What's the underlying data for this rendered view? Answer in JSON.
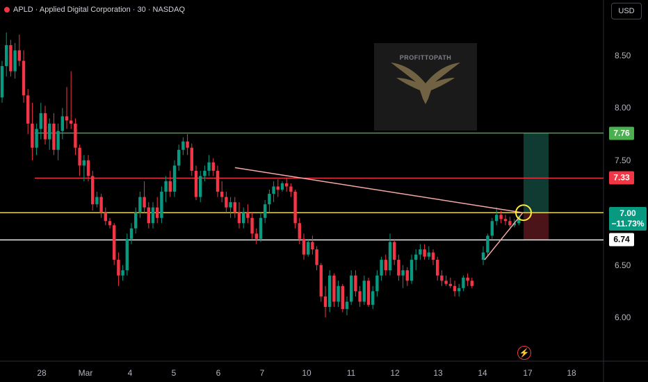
{
  "header": {
    "symbol_line": "APLD · Applied Digital Corporation · 30 · NASDAQ",
    "currency_button": "USD",
    "status_color": "#f23645"
  },
  "watermark": {
    "text": "PROFITTOPATH",
    "icon": "eagle-icon"
  },
  "flash_icon": "lightning-icon",
  "colors": {
    "up": "#089981",
    "down": "#f23645",
    "green_line": "#4caf50",
    "red_line": "#f23645",
    "yellow_line": "#ffeb3b",
    "white_line": "#ffffff",
    "trend_line": "#f7a9a8"
  },
  "chart_data": {
    "type": "candlestick",
    "symbol": "APLD",
    "interval": "30",
    "exchange": "NASDAQ",
    "ylim": [
      5.55,
      9.0
    ],
    "y_ticks": [
      "8.50",
      "8.00",
      "7.50",
      "7.00",
      "6.50",
      "6.00"
    ],
    "x_ticks": [
      "28",
      "Mar",
      "4",
      "5",
      "6",
      "7",
      "10",
      "11",
      "12",
      "13",
      "14",
      "17",
      "18"
    ],
    "horizontal_lines": [
      {
        "value": 7.76,
        "label": "7.76",
        "color": "#4caf50"
      },
      {
        "value": 7.33,
        "label": "7.33",
        "color": "#f23645"
      },
      {
        "value": 7.0,
        "label": "7.00",
        "sublabel": "−11.73%",
        "color": "#ffeb3b"
      },
      {
        "value": 6.74,
        "label": "6.74",
        "color": "#ffffff"
      }
    ],
    "trend_lines": [
      {
        "from": {
          "bar": 50,
          "value": 7.43
        },
        "to": {
          "bar": 114,
          "value": 7.0
        }
      },
      {
        "from": {
          "bar": 105,
          "value": 6.55
        },
        "to": {
          "bar": 114,
          "value": 7.0
        }
      }
    ],
    "position": {
      "entry": 7.0,
      "target": 7.76,
      "stop": 6.74,
      "start_bar": 112,
      "end_bar": 118
    },
    "candles": [
      [
        8.1,
        8.45,
        8.05,
        8.4
      ],
      [
        8.4,
        8.72,
        8.3,
        8.6
      ],
      [
        8.6,
        8.65,
        8.3,
        8.35
      ],
      [
        8.35,
        8.62,
        8.28,
        8.55
      ],
      [
        8.55,
        8.7,
        8.4,
        8.45
      ],
      [
        8.45,
        8.55,
        8.05,
        8.12
      ],
      [
        8.12,
        8.18,
        7.75,
        7.85
      ],
      [
        7.85,
        8.05,
        7.5,
        7.62
      ],
      [
        7.62,
        7.85,
        7.55,
        7.8
      ],
      [
        7.8,
        8.05,
        7.7,
        7.95
      ],
      [
        7.95,
        8.02,
        7.65,
        7.7
      ],
      [
        7.7,
        7.9,
        7.6,
        7.85
      ],
      [
        7.85,
        7.95,
        7.55,
        7.6
      ],
      [
        7.6,
        7.85,
        7.5,
        7.78
      ],
      [
        7.78,
        8.0,
        7.7,
        7.92
      ],
      [
        7.92,
        8.2,
        7.8,
        7.88
      ],
      [
        7.88,
        8.35,
        7.8,
        7.85
      ],
      [
        7.85,
        7.9,
        7.55,
        7.62
      ],
      [
        7.62,
        7.65,
        7.35,
        7.45
      ],
      [
        7.45,
        7.55,
        7.3,
        7.5
      ],
      [
        7.5,
        7.55,
        7.3,
        7.35
      ],
      [
        7.35,
        7.4,
        7.02,
        7.08
      ],
      [
        7.08,
        7.2,
        7.05,
        7.15
      ],
      [
        7.15,
        7.18,
        6.95,
        7.0
      ],
      [
        7.0,
        7.05,
        6.88,
        6.92
      ],
      [
        6.92,
        6.95,
        6.85,
        6.88
      ],
      [
        6.88,
        6.9,
        6.5,
        6.55
      ],
      [
        6.55,
        6.62,
        6.3,
        6.4
      ],
      [
        6.4,
        6.5,
        6.35,
        6.45
      ],
      [
        6.45,
        6.8,
        6.4,
        6.75
      ],
      [
        6.75,
        6.9,
        6.7,
        6.85
      ],
      [
        6.85,
        7.05,
        6.8,
        7.0
      ],
      [
        7.0,
        7.2,
        6.95,
        7.15
      ],
      [
        7.15,
        7.3,
        7.0,
        7.05
      ],
      [
        7.05,
        7.1,
        6.85,
        6.9
      ],
      [
        6.9,
        7.1,
        6.85,
        7.05
      ],
      [
        7.05,
        7.15,
        6.9,
        6.95
      ],
      [
        6.95,
        7.25,
        6.9,
        7.2
      ],
      [
        7.2,
        7.35,
        7.1,
        7.3
      ],
      [
        7.3,
        7.4,
        7.15,
        7.2
      ],
      [
        7.2,
        7.5,
        7.15,
        7.45
      ],
      [
        7.45,
        7.65,
        7.4,
        7.6
      ],
      [
        7.6,
        7.72,
        7.55,
        7.68
      ],
      [
        7.68,
        7.75,
        7.55,
        7.62
      ],
      [
        7.62,
        7.66,
        7.35,
        7.4
      ],
      [
        7.4,
        7.45,
        7.12,
        7.15
      ],
      [
        7.15,
        7.4,
        7.1,
        7.35
      ],
      [
        7.35,
        7.45,
        7.3,
        7.4
      ],
      [
        7.4,
        7.55,
        7.35,
        7.48
      ],
      [
        7.48,
        7.52,
        7.35,
        7.4
      ],
      [
        7.4,
        7.45,
        7.15,
        7.2
      ],
      [
        7.2,
        7.3,
        7.1,
        7.15
      ],
      [
        7.15,
        7.2,
        7.0,
        7.05
      ],
      [
        7.05,
        7.15,
        6.95,
        7.1
      ],
      [
        7.1,
        7.15,
        6.95,
        7.0
      ],
      [
        7.0,
        7.1,
        6.85,
        6.9
      ],
      [
        6.9,
        7.05,
        6.85,
        7.0
      ],
      [
        7.0,
        7.08,
        6.9,
        6.95
      ],
      [
        6.95,
        7.0,
        6.75,
        6.8
      ],
      [
        6.8,
        6.85,
        6.7,
        6.75
      ],
      [
        6.75,
        7.0,
        6.72,
        6.95
      ],
      [
        6.95,
        7.12,
        6.9,
        7.08
      ],
      [
        7.08,
        7.22,
        7.0,
        7.18
      ],
      [
        7.18,
        7.3,
        7.1,
        7.25
      ],
      [
        7.25,
        7.32,
        7.15,
        7.22
      ],
      [
        7.22,
        7.3,
        7.2,
        7.28
      ],
      [
        7.28,
        7.33,
        7.2,
        7.25
      ],
      [
        7.25,
        7.28,
        7.15,
        7.2
      ],
      [
        7.2,
        7.22,
        6.85,
        6.9
      ],
      [
        6.9,
        6.95,
        6.7,
        6.75
      ],
      [
        6.75,
        6.8,
        6.55,
        6.6
      ],
      [
        6.6,
        6.75,
        6.58,
        6.72
      ],
      [
        6.72,
        6.78,
        6.6,
        6.65
      ],
      [
        6.65,
        6.68,
        6.45,
        6.5
      ],
      [
        6.5,
        6.52,
        6.15,
        6.2
      ],
      [
        6.2,
        6.3,
        6.0,
        6.1
      ],
      [
        6.1,
        6.45,
        6.05,
        6.4
      ],
      [
        6.4,
        6.42,
        6.1,
        6.15
      ],
      [
        6.15,
        6.35,
        6.1,
        6.3
      ],
      [
        6.3,
        6.32,
        6.05,
        6.08
      ],
      [
        6.08,
        6.2,
        6.02,
        6.15
      ],
      [
        6.15,
        6.45,
        6.12,
        6.4
      ],
      [
        6.4,
        6.45,
        6.2,
        6.25
      ],
      [
        6.25,
        6.3,
        6.1,
        6.15
      ],
      [
        6.15,
        6.4,
        6.12,
        6.35
      ],
      [
        6.35,
        6.38,
        6.1,
        6.12
      ],
      [
        6.12,
        6.3,
        6.08,
        6.25
      ],
      [
        6.25,
        6.45,
        6.2,
        6.4
      ],
      [
        6.4,
        6.58,
        6.35,
        6.55
      ],
      [
        6.55,
        6.6,
        6.4,
        6.45
      ],
      [
        6.45,
        6.8,
        6.4,
        6.72
      ],
      [
        6.72,
        6.75,
        6.5,
        6.55
      ],
      [
        6.55,
        6.6,
        6.35,
        6.4
      ],
      [
        6.4,
        6.5,
        6.28,
        6.45
      ],
      [
        6.45,
        6.48,
        6.3,
        6.35
      ],
      [
        6.35,
        6.6,
        6.32,
        6.55
      ],
      [
        6.55,
        6.65,
        6.45,
        6.6
      ],
      [
        6.6,
        6.7,
        6.55,
        6.65
      ],
      [
        6.65,
        6.7,
        6.55,
        6.58
      ],
      [
        6.58,
        6.68,
        6.55,
        6.62
      ],
      [
        6.62,
        6.65,
        6.5,
        6.55
      ],
      [
        6.55,
        6.58,
        6.35,
        6.4
      ],
      [
        6.4,
        6.45,
        6.3,
        6.35
      ],
      [
        6.35,
        6.4,
        6.3,
        6.32
      ],
      [
        6.32,
        6.38,
        6.28,
        6.3
      ],
      [
        6.3,
        6.35,
        6.2,
        6.25
      ],
      [
        6.25,
        6.32,
        6.2,
        6.28
      ],
      [
        6.28,
        6.4,
        6.25,
        6.38
      ],
      [
        6.38,
        6.42,
        6.3,
        6.35
      ],
      [
        6.35,
        6.38,
        6.28,
        6.3
      ],
      [
        6.55,
        6.68,
        6.5,
        6.62
      ],
      [
        6.62,
        6.8,
        6.58,
        6.78
      ],
      [
        6.78,
        6.95,
        6.75,
        6.92
      ],
      [
        6.92,
        7.05,
        6.88,
        6.98
      ],
      [
        6.98,
        7.02,
        6.9,
        6.94
      ],
      [
        6.94,
        6.98,
        6.88,
        6.92
      ],
      [
        6.92,
        6.96,
        6.86,
        6.88
      ],
      [
        6.88,
        6.94,
        6.86,
        6.9
      ],
      [
        6.9,
        6.98,
        6.88,
        6.96
      ]
    ]
  }
}
